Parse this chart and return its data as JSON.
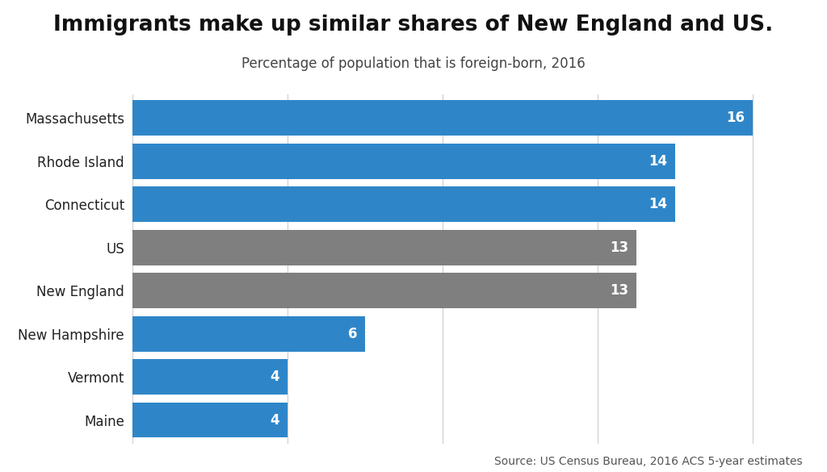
{
  "title": "Immigrants make up similar shares of New England and US.",
  "subtitle": "Percentage of population that is foreign-born, 2016",
  "source": "Source: US Census Bureau, 2016 ACS 5-year estimates",
  "categories": [
    "Massachusetts",
    "Rhode Island",
    "Connecticut",
    "US",
    "New England",
    "New Hampshire",
    "Vermont",
    "Maine"
  ],
  "values": [
    16,
    14,
    14,
    13,
    13,
    6,
    4,
    4
  ],
  "bar_colors": [
    "#2e86c8",
    "#2e86c8",
    "#2e86c8",
    "#7f7f7f",
    "#7f7f7f",
    "#2e86c8",
    "#2e86c8",
    "#2e86c8"
  ],
  "background_color": "#ffffff",
  "title_fontsize": 19,
  "subtitle_fontsize": 12,
  "label_fontsize": 12,
  "value_fontsize": 12,
  "source_fontsize": 10,
  "xlim": [
    0,
    17.5
  ],
  "bar_height": 0.82,
  "text_color": "#ffffff",
  "axis_label_color": "#222222",
  "title_color": "#111111",
  "subtitle_color": "#444444",
  "source_color": "#555555",
  "grid_color": "#cccccc"
}
